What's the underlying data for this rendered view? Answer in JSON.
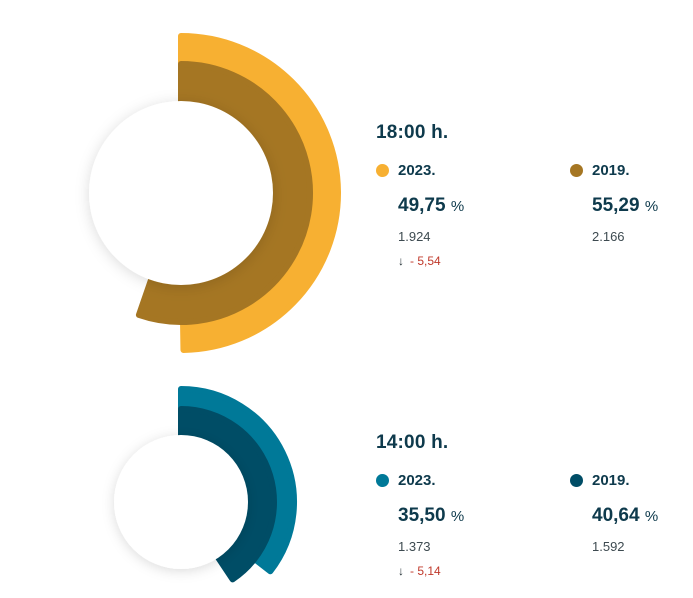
{
  "chart_data": [
    {
      "type": "donut",
      "title": "18:00 h.",
      "series": [
        {
          "name": "2023.",
          "value": 49.75,
          "value_label": "49,75",
          "unit": "%",
          "count": "1.924",
          "change": "- 5,54",
          "color": "#f7b032"
        },
        {
          "name": "2019.",
          "value": 55.29,
          "value_label": "55,29",
          "unit": "%",
          "count": "2.166",
          "color": "#a57623"
        }
      ]
    },
    {
      "type": "donut",
      "title": "14:00 h.",
      "series": [
        {
          "name": "2023.",
          "value": 35.5,
          "value_label": "35,50",
          "unit": "%",
          "count": "1.373",
          "change": "- 5,14",
          "color": "#007998"
        },
        {
          "name": "2019.",
          "value": 40.64,
          "value_label": "40,64",
          "unit": "%",
          "count": "1.592",
          "color": "#004d66"
        }
      ]
    }
  ],
  "change_arrow": "↓"
}
